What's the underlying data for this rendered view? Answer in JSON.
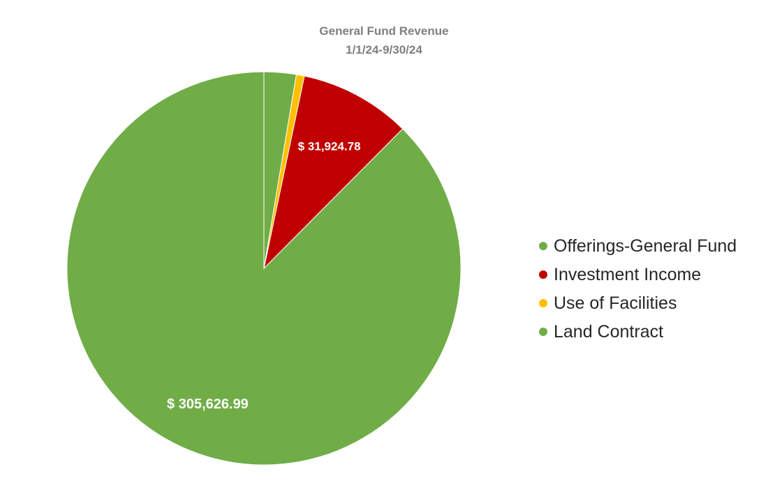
{
  "chart_data": {
    "type": "pie",
    "title": "General Fund Revenue",
    "subtitle": "1/1/24-9/30/24",
    "categories": [
      "Offerings-General Fund",
      "Investment Income",
      "Use of Facilities",
      "Land Contract"
    ],
    "values": [
      305626.99,
      31924.78,
      2300,
      9200
    ],
    "colors": [
      "#70ad47",
      "#c00000",
      "#ffc000",
      "#70ad47"
    ],
    "data_labels": [
      "$ 305,626.99",
      "$ 31,924.78",
      "",
      ""
    ],
    "legend_position": "right",
    "start_angle": "12 o'clock",
    "direction": "counterclockwise"
  }
}
